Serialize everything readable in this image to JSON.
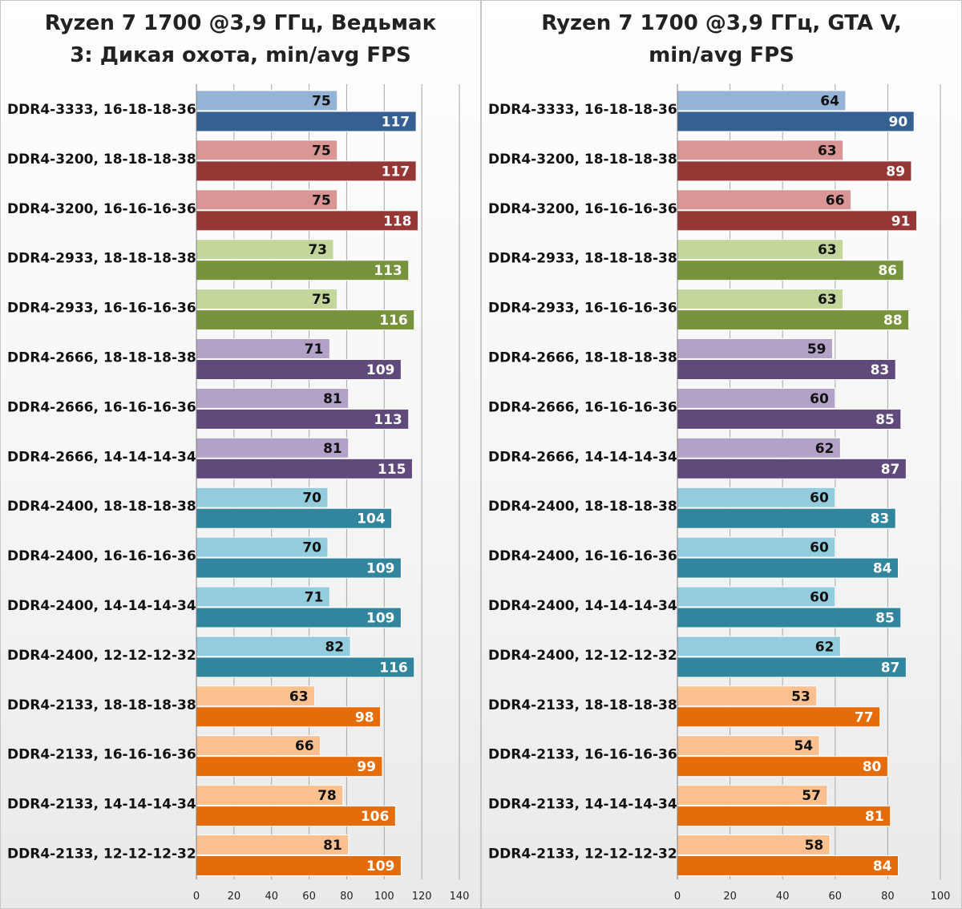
{
  "chart_data": [
    {
      "type": "bar",
      "title": "Ryzen 7 1700 @3,9 ГГц, Ведьмак\n3: Дикая охота, min/avg FPS",
      "categories": [
        "DDR4-3333, 16-18-18-36",
        "DDR4-3200, 18-18-18-38",
        "DDR4-3200, 16-16-16-36",
        "DDR4-2933, 18-18-18-38",
        "DDR4-2933, 16-16-16-36",
        "DDR4-2666, 18-18-18-38",
        "DDR4-2666, 16-16-16-36",
        "DDR4-2666, 14-14-14-34",
        "DDR4-2400, 18-18-18-38",
        "DDR4-2400, 16-16-16-36",
        "DDR4-2400, 14-14-14-34",
        "DDR4-2400, 12-12-12-32",
        "DDR4-2133, 18-18-18-38",
        "DDR4-2133, 16-16-16-36",
        "DDR4-2133, 14-14-14-34",
        "DDR4-2133, 12-12-12-32"
      ],
      "series": [
        {
          "values": [
            75,
            75,
            75,
            73,
            75,
            71,
            81,
            81,
            70,
            70,
            71,
            82,
            63,
            66,
            78,
            81
          ]
        },
        {
          "values": [
            117,
            117,
            118,
            113,
            116,
            109,
            113,
            115,
            104,
            109,
            109,
            116,
            98,
            99,
            106,
            109
          ]
        }
      ],
      "xlim": [
        0,
        140
      ],
      "xticks": [
        "0",
        "20",
        "40",
        "60",
        "80",
        "100",
        "120",
        "140"
      ],
      "grid": true
    },
    {
      "type": "bar",
      "title": "Ryzen 7 1700 @3,9 ГГц, GTA V,\nmin/avg FPS",
      "categories": [
        "DDR4-3333, 16-18-18-36",
        "DDR4-3200, 18-18-18-38",
        "DDR4-3200, 16-16-16-36",
        "DDR4-2933, 18-18-18-38",
        "DDR4-2933, 16-16-16-36",
        "DDR4-2666, 18-18-18-38",
        "DDR4-2666, 16-16-16-36",
        "DDR4-2666, 14-14-14-34",
        "DDR4-2400, 18-18-18-38",
        "DDR4-2400, 16-16-16-36",
        "DDR4-2400, 14-14-14-34",
        "DDR4-2400, 12-12-12-32",
        "DDR4-2133, 18-18-18-38",
        "DDR4-2133, 16-16-16-36",
        "DDR4-2133, 14-14-14-34",
        "DDR4-2133, 12-12-12-32"
      ],
      "series": [
        {
          "values": [
            64,
            63,
            66,
            63,
            63,
            59,
            60,
            62,
            60,
            60,
            60,
            62,
            53,
            54,
            57,
            58
          ]
        },
        {
          "values": [
            90,
            89,
            91,
            86,
            88,
            83,
            85,
            87,
            83,
            84,
            85,
            87,
            77,
            80,
            81,
            84
          ]
        }
      ],
      "xlim": [
        0,
        100
      ],
      "xticks": [
        "0",
        "20",
        "40",
        "60",
        "80",
        "100"
      ],
      "grid": true
    }
  ],
  "colors": {
    "groups": [
      {
        "light": "#95b3d7",
        "dark": "#376092"
      },
      {
        "light": "#d99694",
        "dark": "#953735"
      },
      {
        "light": "#d99694",
        "dark": "#953735"
      },
      {
        "light": "#c3d69b",
        "dark": "#77933c"
      },
      {
        "light": "#c3d69b",
        "dark": "#77933c"
      },
      {
        "light": "#b3a2c7",
        "dark": "#604a7b"
      },
      {
        "light": "#b3a2c7",
        "dark": "#604a7b"
      },
      {
        "light": "#b3a2c7",
        "dark": "#604a7b"
      },
      {
        "light": "#93cddd",
        "dark": "#31859c"
      },
      {
        "light": "#93cddd",
        "dark": "#31859c"
      },
      {
        "light": "#93cddd",
        "dark": "#31859c"
      },
      {
        "light": "#93cddd",
        "dark": "#31859c"
      },
      {
        "light": "#fac090",
        "dark": "#e46c0a"
      },
      {
        "light": "#fac090",
        "dark": "#e46c0a"
      },
      {
        "light": "#fac090",
        "dark": "#e46c0a"
      },
      {
        "light": "#fac090",
        "dark": "#e46c0a"
      }
    ]
  }
}
